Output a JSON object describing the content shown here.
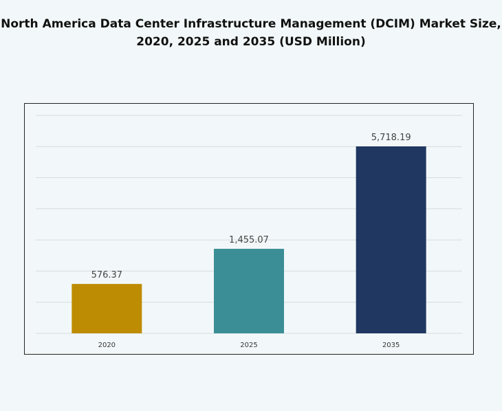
{
  "chart_data": {
    "type": "bar",
    "title_lines": [
      "North America Data Center Infrastructure Management (DCIM) Market Size,",
      "2020, 2025 and 2035 (USD Million)"
    ],
    "categories": [
      "2020",
      "2025",
      "2035"
    ],
    "values": [
      576.37,
      1455.07,
      5718.19
    ],
    "data_labels": [
      "576.37",
      "1,455.07",
      "5,718.19"
    ],
    "colors": [
      "#be8c02",
      "#3c8e96",
      "#1f3761"
    ],
    "grid": true,
    "legend": "none",
    "xlabel": "",
    "ylabel": ""
  }
}
